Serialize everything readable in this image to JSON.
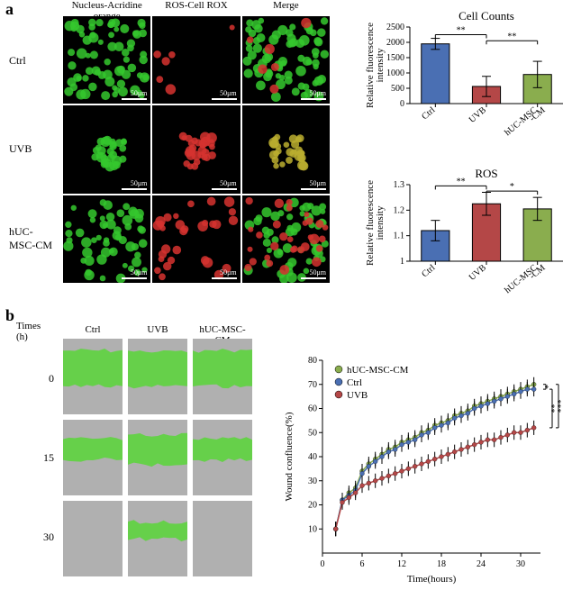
{
  "panelA": {
    "label": "a",
    "colHeaders": [
      "Nucleus-Acridine orange",
      "ROS-Cell ROX",
      "Merge"
    ],
    "rowLabels": [
      "Ctrl",
      "UVB",
      "hUC-MSC-CM"
    ],
    "scaleText": "50μm",
    "cells": [
      {
        "r": 0,
        "c": 0,
        "dots": 70,
        "color": "#35c82e",
        "bg": "#000000"
      },
      {
        "r": 0,
        "c": 1,
        "dots": 6,
        "color": "#d6332f",
        "bg": "#000000"
      },
      {
        "r": 0,
        "c": 2,
        "dots": 70,
        "color": "#35c82e",
        "bg": "#000000",
        "overlay": "#d6332f",
        "overlayDots": 6
      },
      {
        "r": 1,
        "c": 0,
        "dots": 28,
        "color": "#35c82e",
        "bg": "#000000",
        "cluster": true
      },
      {
        "r": 1,
        "c": 1,
        "dots": 28,
        "color": "#d6332f",
        "bg": "#000000",
        "cluster": true
      },
      {
        "r": 1,
        "c": 2,
        "dots": 28,
        "color": "#bbae2f",
        "bg": "#000000",
        "cluster": true
      },
      {
        "r": 2,
        "c": 0,
        "dots": 55,
        "color": "#35c82e",
        "bg": "#000000"
      },
      {
        "r": 2,
        "c": 1,
        "dots": 30,
        "color": "#d6332f",
        "bg": "#000000"
      },
      {
        "r": 2,
        "c": 2,
        "dots": 55,
        "color": "#35c82e",
        "bg": "#000000",
        "overlay": "#d6332f",
        "overlayDots": 30
      }
    ],
    "chart1": {
      "title": "Cell Counts",
      "ylabel": "Relative fluorescence\nintensity",
      "categories": [
        "Ctrl",
        "UVB",
        "hUC-MSC\n-CM"
      ],
      "values": [
        1950,
        560,
        950
      ],
      "errs": [
        180,
        330,
        430
      ],
      "colors": [
        "#4a6fb3",
        "#b44747",
        "#8aad4e"
      ],
      "ylim": [
        0,
        2500
      ],
      "ytick_step": 500,
      "sig": [
        {
          "from": 0,
          "to": 1,
          "label": "**",
          "y": 2250
        },
        {
          "from": 1,
          "to": 2,
          "label": "**",
          "y": 2050
        }
      ]
    },
    "chart2": {
      "title": "ROS",
      "ylabel": "Relative fluorescence\nintensity",
      "categories": [
        "Ctrl",
        "UVB",
        "hUC-MSC\n-CM"
      ],
      "values": [
        1.12,
        1.225,
        1.205
      ],
      "errs": [
        0.04,
        0.045,
        0.045
      ],
      "colors": [
        "#4a6fb3",
        "#b44747",
        "#8aad4e"
      ],
      "ylim": [
        1.0,
        1.3
      ],
      "ytick_step": 0.1,
      "sig": [
        {
          "from": 0,
          "to": 1,
          "label": "**",
          "y": 1.295
        },
        {
          "from": 1,
          "to": 2,
          "label": "*",
          "y": 1.275
        }
      ]
    }
  },
  "panelB": {
    "label": "b",
    "timesLabel": "Times\n(h)",
    "colHeaders": [
      "Ctrl",
      "UVB",
      "hUC-MSC-CM"
    ],
    "rowLabels": [
      "0",
      "15",
      "30"
    ],
    "woundCells": [
      {
        "r": 0,
        "c": 0,
        "gap": 0.5
      },
      {
        "r": 0,
        "c": 1,
        "gap": 0.5
      },
      {
        "r": 0,
        "c": 2,
        "gap": 0.5
      },
      {
        "r": 1,
        "c": 0,
        "gap": 0.25
      },
      {
        "r": 1,
        "c": 1,
        "gap": 0.4
      },
      {
        "r": 1,
        "c": 2,
        "gap": 0.25
      },
      {
        "r": 2,
        "c": 0,
        "gap": 0.02
      },
      {
        "r": 2,
        "c": 1,
        "gap": 0.2
      },
      {
        "r": 2,
        "c": 2,
        "gap": 0.0
      }
    ],
    "lineChart": {
      "xlabel": "Time(hours)",
      "ylabel": "Wound confluence(%)",
      "xlim": [
        0,
        33
      ],
      "xtick_step": 6,
      "ylim": [
        0,
        80
      ],
      "ytick_step": 10,
      "legend": [
        {
          "name": "hUC-MSC-CM",
          "color": "#8aad4e"
        },
        {
          "name": "Ctrl",
          "color": "#4a6fb3"
        },
        {
          "name": "UVB",
          "color": "#b44747"
        }
      ],
      "series": {
        "ctrl": {
          "color": "#4a6fb3",
          "pts": [
            [
              2,
              10
            ],
            [
              3,
              22
            ],
            [
              4,
              24
            ],
            [
              5,
              26
            ],
            [
              6,
              33
            ],
            [
              7,
              36
            ],
            [
              8,
              38
            ],
            [
              9,
              40
            ],
            [
              10,
              42
            ],
            [
              11,
              43
            ],
            [
              12,
              45
            ],
            [
              13,
              46
            ],
            [
              14,
              47
            ],
            [
              15,
              49
            ],
            [
              16,
              50
            ],
            [
              17,
              52
            ],
            [
              18,
              53
            ],
            [
              19,
              54
            ],
            [
              20,
              56
            ],
            [
              21,
              57
            ],
            [
              22,
              58
            ],
            [
              23,
              60
            ],
            [
              24,
              61
            ],
            [
              25,
              62
            ],
            [
              26,
              63
            ],
            [
              27,
              64
            ],
            [
              28,
              65
            ],
            [
              29,
              66
            ],
            [
              30,
              67
            ],
            [
              31,
              68
            ],
            [
              32,
              68
            ]
          ],
          "err": 3
        },
        "msc": {
          "color": "#8aad4e",
          "pts": [
            [
              2,
              10
            ],
            [
              3,
              22
            ],
            [
              4,
              25
            ],
            [
              5,
              27
            ],
            [
              6,
              34
            ],
            [
              7,
              37
            ],
            [
              8,
              39
            ],
            [
              9,
              41
            ],
            [
              10,
              43
            ],
            [
              11,
              44
            ],
            [
              12,
              46
            ],
            [
              13,
              47
            ],
            [
              14,
              48
            ],
            [
              15,
              50
            ],
            [
              16,
              51
            ],
            [
              17,
              53
            ],
            [
              18,
              54
            ],
            [
              19,
              55
            ],
            [
              20,
              57
            ],
            [
              21,
              58
            ],
            [
              22,
              59
            ],
            [
              23,
              61
            ],
            [
              24,
              62
            ],
            [
              25,
              63
            ],
            [
              26,
              64
            ],
            [
              27,
              65
            ],
            [
              28,
              66
            ],
            [
              29,
              67
            ],
            [
              30,
              68
            ],
            [
              31,
              69
            ],
            [
              32,
              70
            ]
          ],
          "err": 3
        },
        "uvb": {
          "color": "#b44747",
          "pts": [
            [
              2,
              10
            ],
            [
              3,
              21
            ],
            [
              4,
              23
            ],
            [
              5,
              25
            ],
            [
              6,
              28
            ],
            [
              7,
              29
            ],
            [
              8,
              30
            ],
            [
              9,
              31
            ],
            [
              10,
              32
            ],
            [
              11,
              33
            ],
            [
              12,
              34
            ],
            [
              13,
              35
            ],
            [
              14,
              36
            ],
            [
              15,
              37
            ],
            [
              16,
              38
            ],
            [
              17,
              39
            ],
            [
              18,
              40
            ],
            [
              19,
              41
            ],
            [
              20,
              42
            ],
            [
              21,
              43
            ],
            [
              22,
              44
            ],
            [
              23,
              45
            ],
            [
              24,
              46
            ],
            [
              25,
              47
            ],
            [
              26,
              47
            ],
            [
              27,
              48
            ],
            [
              28,
              49
            ],
            [
              29,
              50
            ],
            [
              30,
              50
            ],
            [
              31,
              51
            ],
            [
              32,
              52
            ]
          ],
          "err": 3
        }
      },
      "sig": [
        {
          "from": "ctrl",
          "to": "msc",
          "label": "*",
          "x": 32.8
        },
        {
          "from": "ctrl",
          "to": "uvb",
          "label": "**",
          "x": 33.8
        },
        {
          "from": "msc",
          "to": "uvb",
          "label": "***",
          "x": 34.8
        }
      ]
    }
  }
}
